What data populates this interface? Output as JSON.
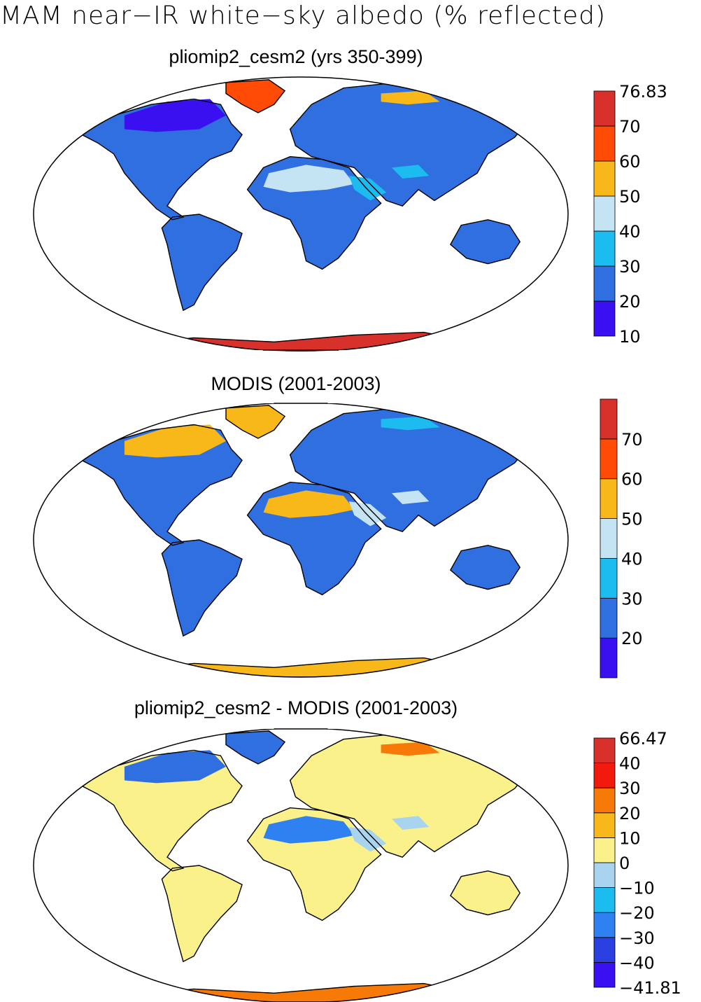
{
  "figure": {
    "main_title": "MAM near−IR white−sky albedo (% reflected)"
  },
  "panels": [
    {
      "title": "pliomip2_cesm2 (yrs 350-399)",
      "colorbar": {
        "colors": [
          "#3a10f0",
          "#2f6fe0",
          "#1cbcf0",
          "#c4e4f4",
          "#f9b81a",
          "#ff4b06",
          "#d8302a"
        ],
        "labels": [
          "10",
          "20",
          "30",
          "40",
          "50",
          "60",
          "70",
          "76.83"
        ]
      },
      "regions": {
        "land_main": "#2f6fe0",
        "high_lat": "#3a10f0",
        "desert": "#c4e4f4",
        "arabia": "#1cbcf0",
        "greenland": "#ff4b06",
        "antarctica": "#d8302a",
        "siberia_patch": "#f9b81a"
      }
    },
    {
      "title": "MODIS (2001-2003)",
      "colorbar": {
        "colors": [
          "#3a10f0",
          "#2f6fe0",
          "#1cbcf0",
          "#c4e4f4",
          "#f9b81a",
          "#ff4b06",
          "#d8302a"
        ],
        "labels": [
          "20",
          "30",
          "40",
          "50",
          "60",
          "70"
        ]
      },
      "regions": {
        "land_main": "#2f6fe0",
        "high_lat": "#f9b81a",
        "desert": "#f9b81a",
        "arabia": "#c4e4f4",
        "greenland": "#f9b81a",
        "antarctica": "#f9b81a",
        "siberia_patch": "#1cbcf0"
      }
    },
    {
      "title": "pliomip2_cesm2 - MODIS (2001-2003)",
      "colorbar": {
        "colors": [
          "#3a10f0",
          "#2a40e0",
          "#2f80f0",
          "#1cbcf0",
          "#a8d4f0",
          "#fbf18a",
          "#f9b81a",
          "#f77a08",
          "#f21a0c",
          "#d8302a"
        ],
        "labels": [
          "−41.81",
          "−40",
          "−30",
          "−20",
          "−10",
          "0",
          "10",
          "20",
          "30",
          "40",
          "66.47"
        ]
      },
      "regions": {
        "land_main": "#fbf18a",
        "high_lat": "#2f6fe0",
        "desert": "#2f80f0",
        "arabia": "#a8d4f0",
        "greenland": "#2f6fe0",
        "antarctica": "#f77a08",
        "siberia_patch": "#f77a08"
      }
    }
  ]
}
